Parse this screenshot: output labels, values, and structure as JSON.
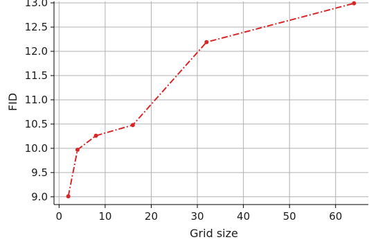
{
  "chart_data": {
    "type": "line",
    "title": "",
    "xlabel": "Grid size",
    "ylabel": "FID",
    "xlim": [
      -1.1,
      67.1
    ],
    "ylim": [
      8.84,
      13.03
    ],
    "xticks": [
      0,
      10,
      20,
      30,
      40,
      50,
      60
    ],
    "yticks": [
      9.0,
      9.5,
      10.0,
      10.5,
      11.0,
      11.5,
      12.0,
      12.5,
      13.0
    ],
    "xtick_labels": [
      "0",
      "10",
      "20",
      "30",
      "40",
      "50",
      "60"
    ],
    "ytick_labels": [
      "9.0",
      "9.5",
      "10.0",
      "10.5",
      "11.0",
      "11.5",
      "12.0",
      "12.5",
      "13.0"
    ],
    "grid": true,
    "legend": false,
    "series": [
      {
        "color": "#d62728",
        "line_style": "dash-dot",
        "marker": "circle",
        "x": [
          2,
          4,
          8,
          16,
          32,
          64
        ],
        "values": [
          9.01,
          9.97,
          10.26,
          10.48,
          12.19,
          12.99
        ]
      }
    ]
  }
}
